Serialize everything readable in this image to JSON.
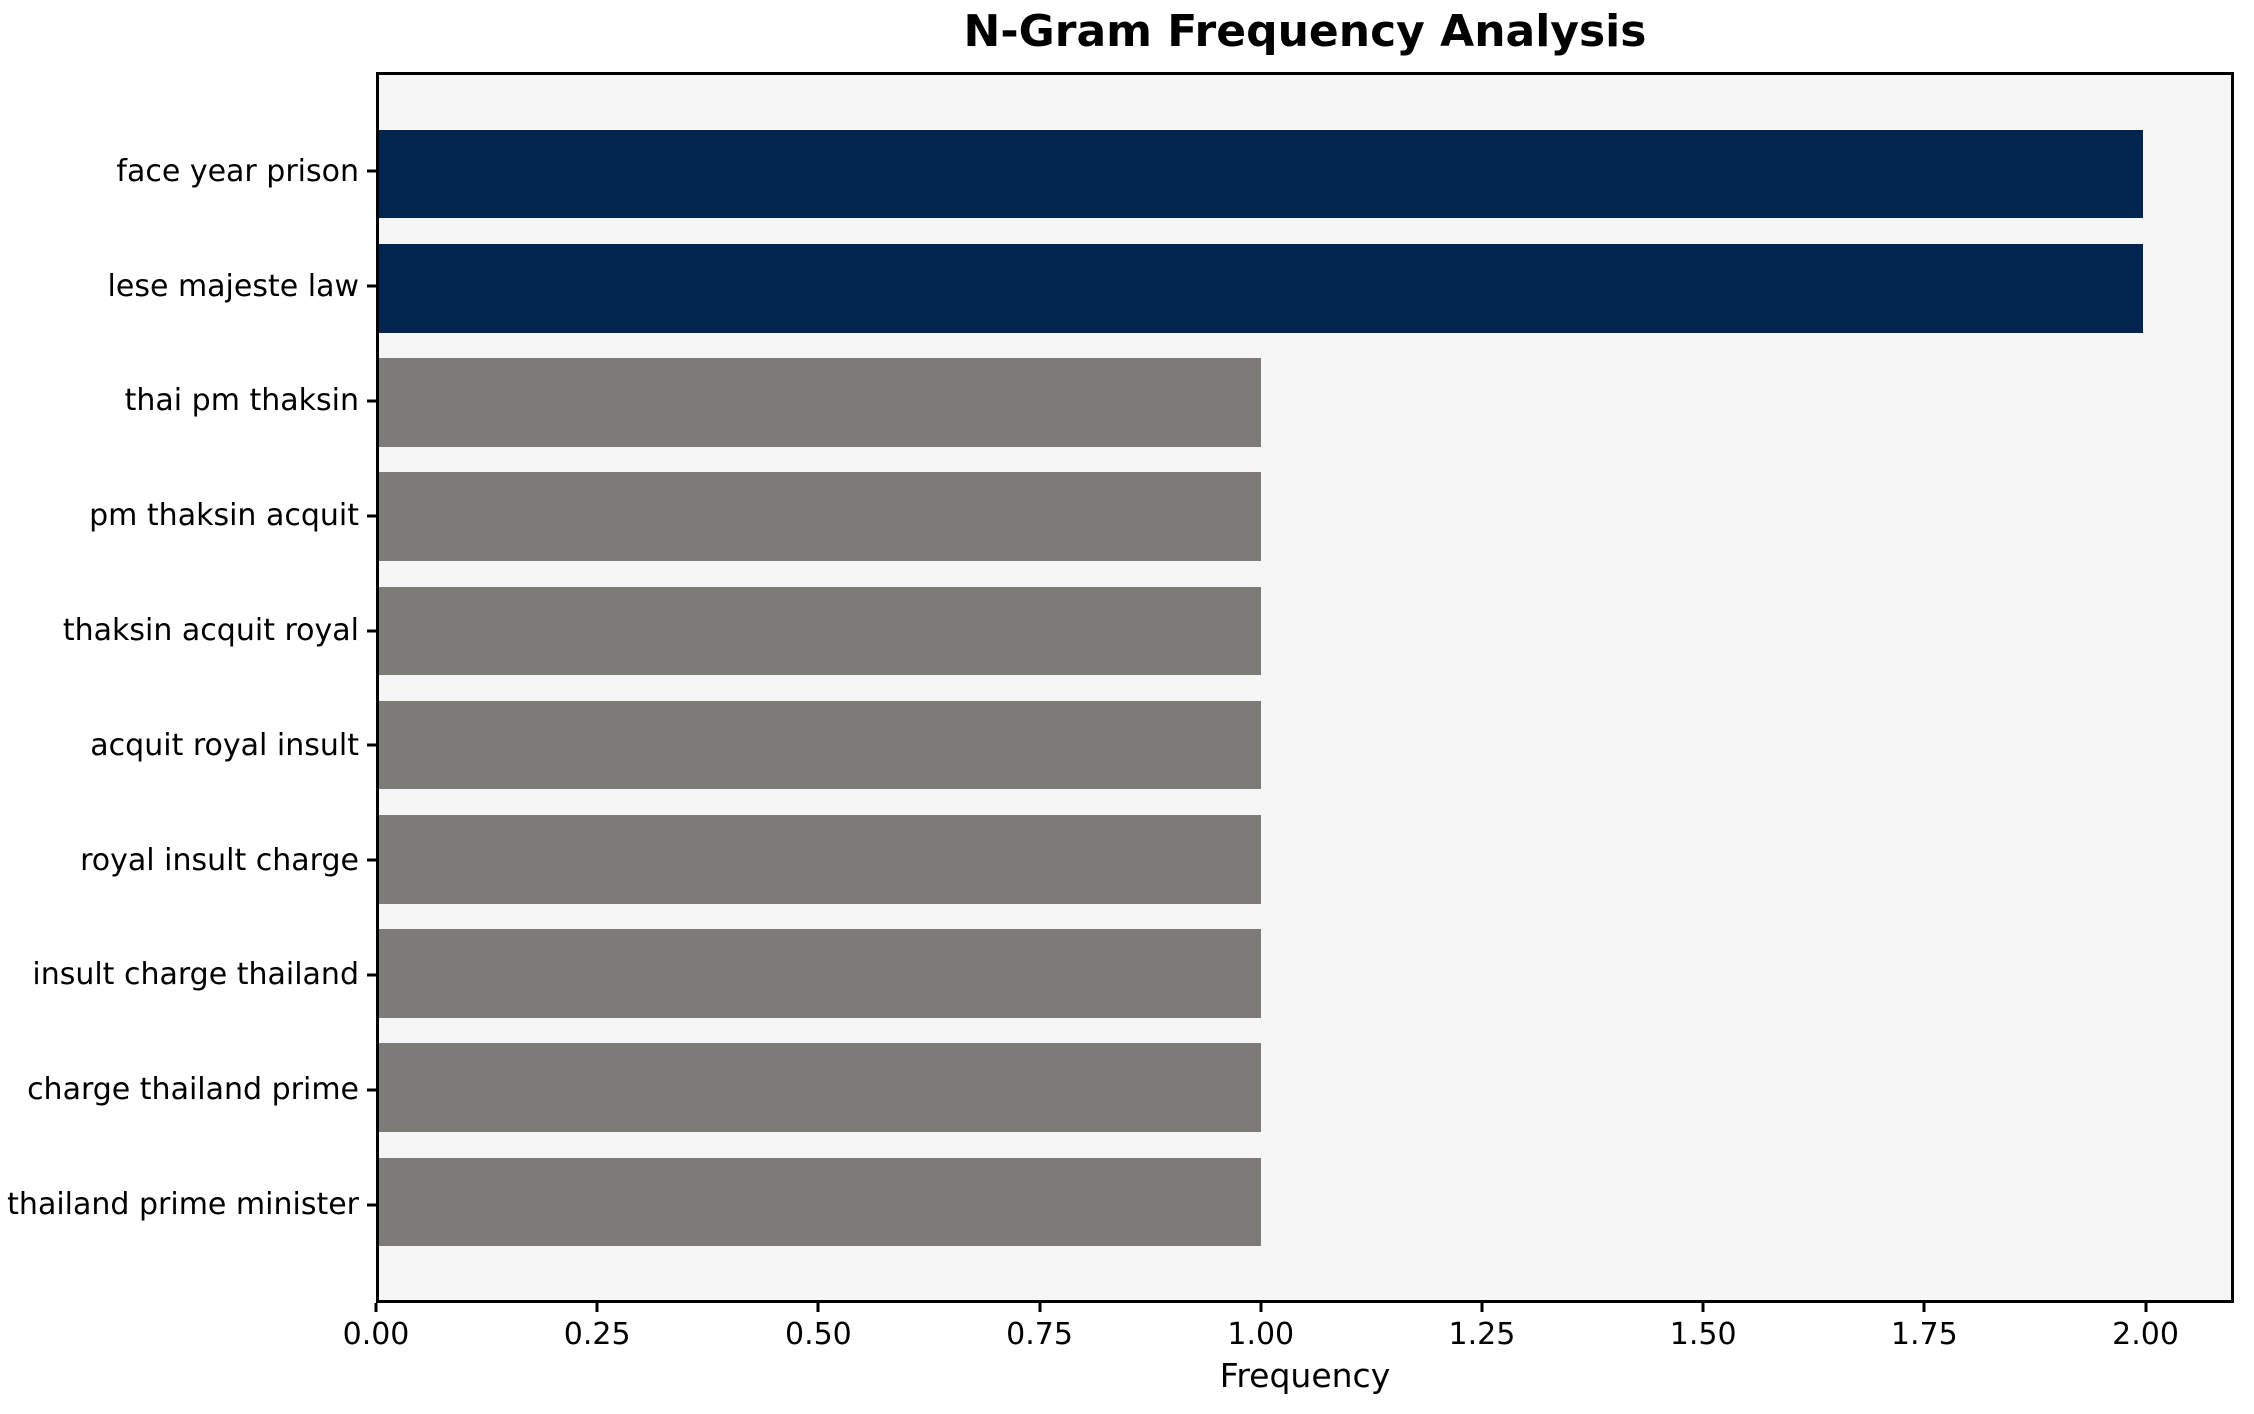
{
  "title": "N-Gram Frequency Analysis",
  "chart_data": {
    "type": "bar",
    "orientation": "horizontal",
    "title": "N-Gram Frequency Analysis",
    "xlabel": "Frequency",
    "ylabel": "",
    "categories": [
      "face year prison",
      "lese majeste law",
      "thai pm thaksin",
      "pm thaksin acquit",
      "thaksin acquit royal",
      "acquit royal insult",
      "royal insult charge",
      "insult charge thailand",
      "charge thailand prime",
      "thailand prime minister"
    ],
    "values": [
      2,
      2,
      1,
      1,
      1,
      1,
      1,
      1,
      1,
      1
    ],
    "bar_colors": [
      "#022550",
      "#022550",
      "#7C7B77",
      "#7C7B77",
      "#7C7B77",
      "#7C7B77",
      "#7C7B77",
      "#7C7B77",
      "#7C7B77",
      "#7C7B77"
    ],
    "highlight_color": "#022550",
    "default_color": "#7C7B77",
    "plot_background": "#F7F6F6",
    "spine_color": "#000000",
    "x_ticks": [
      "0.00",
      "0.25",
      "0.50",
      "0.75",
      "1.00",
      "1.25",
      "1.50",
      "1.75",
      "2.00"
    ],
    "x_tick_values": [
      0,
      0.25,
      0.5,
      0.75,
      1.0,
      1.25,
      1.5,
      1.75,
      2.0
    ],
    "xlim": [
      0,
      2.1
    ],
    "grid": false,
    "legend": "none"
  }
}
